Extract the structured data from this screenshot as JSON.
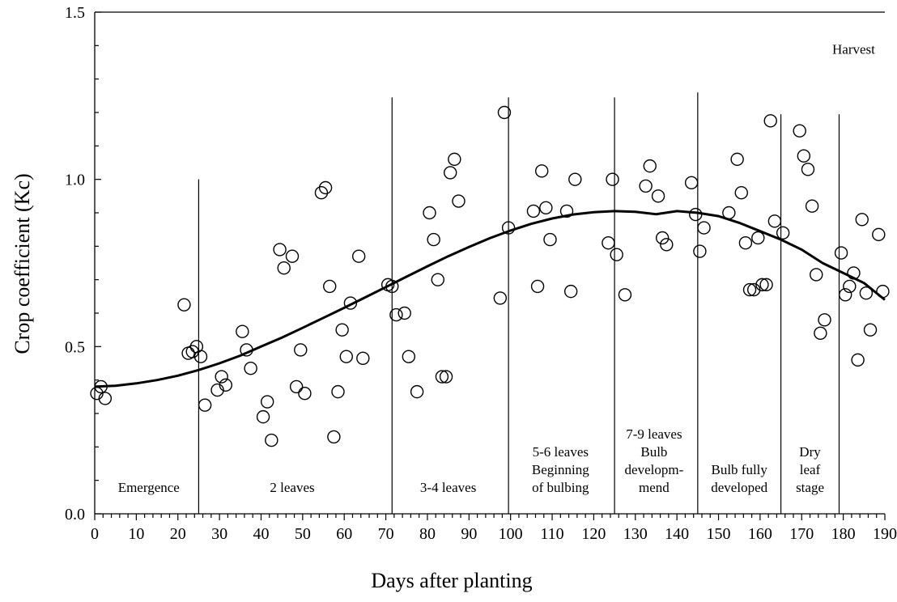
{
  "chart_data": {
    "type": "scatter",
    "title": "",
    "xlabel": "Days after planting",
    "ylabel": "Crop coefficient (Kc)",
    "xlim": [
      0,
      190
    ],
    "ylim": [
      0,
      1.5
    ],
    "x_ticks": [
      0,
      10,
      20,
      30,
      40,
      50,
      60,
      70,
      80,
      90,
      100,
      110,
      120,
      130,
      140,
      150,
      160,
      170,
      180,
      190
    ],
    "y_ticks": [
      0.0,
      0.5,
      1.0,
      1.5
    ],
    "y_tick_labels": [
      "0.0",
      "0.5",
      "1.0",
      "1.5"
    ],
    "grid": false,
    "legend": "none",
    "points": [
      {
        "x": 0.5,
        "y": 0.36
      },
      {
        "x": 1.5,
        "y": 0.38
      },
      {
        "x": 2.5,
        "y": 0.345
      },
      {
        "x": 21.5,
        "y": 0.625
      },
      {
        "x": 22.5,
        "y": 0.48
      },
      {
        "x": 23.5,
        "y": 0.485
      },
      {
        "x": 24.5,
        "y": 0.5
      },
      {
        "x": 25.5,
        "y": 0.47
      },
      {
        "x": 26.5,
        "y": 0.325
      },
      {
        "x": 29.5,
        "y": 0.37
      },
      {
        "x": 30.5,
        "y": 0.41
      },
      {
        "x": 31.5,
        "y": 0.385
      },
      {
        "x": 35.5,
        "y": 0.545
      },
      {
        "x": 36.5,
        "y": 0.49
      },
      {
        "x": 37.5,
        "y": 0.435
      },
      {
        "x": 40.5,
        "y": 0.29
      },
      {
        "x": 41.5,
        "y": 0.335
      },
      {
        "x": 42.5,
        "y": 0.22
      },
      {
        "x": 44.5,
        "y": 0.79
      },
      {
        "x": 45.5,
        "y": 0.735
      },
      {
        "x": 47.5,
        "y": 0.77
      },
      {
        "x": 48.5,
        "y": 0.38
      },
      {
        "x": 49.5,
        "y": 0.49
      },
      {
        "x": 50.5,
        "y": 0.36
      },
      {
        "x": 54.5,
        "y": 0.96
      },
      {
        "x": 55.5,
        "y": 0.975
      },
      {
        "x": 56.5,
        "y": 0.68
      },
      {
        "x": 57.5,
        "y": 0.23
      },
      {
        "x": 58.5,
        "y": 0.365
      },
      {
        "x": 59.5,
        "y": 0.55
      },
      {
        "x": 60.5,
        "y": 0.47
      },
      {
        "x": 61.5,
        "y": 0.63
      },
      {
        "x": 63.5,
        "y": 0.77
      },
      {
        "x": 64.5,
        "y": 0.465
      },
      {
        "x": 70.5,
        "y": 0.685
      },
      {
        "x": 71.5,
        "y": 0.68
      },
      {
        "x": 72.5,
        "y": 0.595
      },
      {
        "x": 74.5,
        "y": 0.6
      },
      {
        "x": 75.5,
        "y": 0.47
      },
      {
        "x": 77.5,
        "y": 0.365
      },
      {
        "x": 80.5,
        "y": 0.9
      },
      {
        "x": 81.5,
        "y": 0.82
      },
      {
        "x": 82.5,
        "y": 0.7
      },
      {
        "x": 83.5,
        "y": 0.41
      },
      {
        "x": 84.5,
        "y": 0.41
      },
      {
        "x": 85.5,
        "y": 1.02
      },
      {
        "x": 86.5,
        "y": 1.06
      },
      {
        "x": 87.5,
        "y": 0.935
      },
      {
        "x": 97.5,
        "y": 0.645
      },
      {
        "x": 98.5,
        "y": 1.2
      },
      {
        "x": 99.5,
        "y": 0.855
      },
      {
        "x": 105.5,
        "y": 0.905
      },
      {
        "x": 106.5,
        "y": 0.68
      },
      {
        "x": 107.5,
        "y": 1.025
      },
      {
        "x": 108.5,
        "y": 0.915
      },
      {
        "x": 109.5,
        "y": 0.82
      },
      {
        "x": 113.5,
        "y": 0.905
      },
      {
        "x": 114.5,
        "y": 0.665
      },
      {
        "x": 115.5,
        "y": 1.0
      },
      {
        "x": 123.5,
        "y": 0.81
      },
      {
        "x": 124.5,
        "y": 1.0
      },
      {
        "x": 125.5,
        "y": 0.775
      },
      {
        "x": 127.5,
        "y": 0.655
      },
      {
        "x": 132.5,
        "y": 0.98
      },
      {
        "x": 133.5,
        "y": 1.04
      },
      {
        "x": 135.5,
        "y": 0.95
      },
      {
        "x": 136.5,
        "y": 0.825
      },
      {
        "x": 137.5,
        "y": 0.805
      },
      {
        "x": 143.5,
        "y": 0.99
      },
      {
        "x": 144.5,
        "y": 0.895
      },
      {
        "x": 145.5,
        "y": 0.785
      },
      {
        "x": 146.5,
        "y": 0.855
      },
      {
        "x": 152.5,
        "y": 0.9
      },
      {
        "x": 154.5,
        "y": 1.06
      },
      {
        "x": 155.5,
        "y": 0.96
      },
      {
        "x": 156.5,
        "y": 0.81
      },
      {
        "x": 157.5,
        "y": 0.67
      },
      {
        "x": 158.5,
        "y": 0.67
      },
      {
        "x": 159.5,
        "y": 0.825
      },
      {
        "x": 160.5,
        "y": 0.685
      },
      {
        "x": 161.5,
        "y": 0.685
      },
      {
        "x": 162.5,
        "y": 1.175
      },
      {
        "x": 163.5,
        "y": 0.875
      },
      {
        "x": 165.5,
        "y": 0.84
      },
      {
        "x": 169.5,
        "y": 1.145
      },
      {
        "x": 170.5,
        "y": 1.07
      },
      {
        "x": 171.5,
        "y": 1.03
      },
      {
        "x": 172.5,
        "y": 0.92
      },
      {
        "x": 173.5,
        "y": 0.715
      },
      {
        "x": 174.5,
        "y": 0.54
      },
      {
        "x": 175.5,
        "y": 0.58
      },
      {
        "x": 179.5,
        "y": 0.78
      },
      {
        "x": 180.5,
        "y": 0.655
      },
      {
        "x": 181.5,
        "y": 0.68
      },
      {
        "x": 182.5,
        "y": 0.72
      },
      {
        "x": 183.5,
        "y": 0.46
      },
      {
        "x": 184.5,
        "y": 0.88
      },
      {
        "x": 185.5,
        "y": 0.66
      },
      {
        "x": 186.5,
        "y": 0.55
      },
      {
        "x": 188.5,
        "y": 0.835
      },
      {
        "x": 189.5,
        "y": 0.665
      }
    ],
    "fitted_curve": [
      {
        "x": 0,
        "y": 0.38
      },
      {
        "x": 5,
        "y": 0.383
      },
      {
        "x": 10,
        "y": 0.39
      },
      {
        "x": 15,
        "y": 0.4
      },
      {
        "x": 20,
        "y": 0.413
      },
      {
        "x": 25,
        "y": 0.43
      },
      {
        "x": 30,
        "y": 0.45
      },
      {
        "x": 35,
        "y": 0.473
      },
      {
        "x": 40,
        "y": 0.5
      },
      {
        "x": 45,
        "y": 0.527
      },
      {
        "x": 50,
        "y": 0.556
      },
      {
        "x": 55,
        "y": 0.586
      },
      {
        "x": 60,
        "y": 0.616
      },
      {
        "x": 65,
        "y": 0.647
      },
      {
        "x": 70,
        "y": 0.678
      },
      {
        "x": 75,
        "y": 0.709
      },
      {
        "x": 80,
        "y": 0.74
      },
      {
        "x": 85,
        "y": 0.77
      },
      {
        "x": 90,
        "y": 0.798
      },
      {
        "x": 95,
        "y": 0.824
      },
      {
        "x": 100,
        "y": 0.847
      },
      {
        "x": 105,
        "y": 0.867
      },
      {
        "x": 110,
        "y": 0.883
      },
      {
        "x": 115,
        "y": 0.895
      },
      {
        "x": 120,
        "y": 0.902
      },
      {
        "x": 125,
        "y": 0.905
      },
      {
        "x": 130,
        "y": 0.903
      },
      {
        "x": 135,
        "y": 0.896
      },
      {
        "x": 140,
        "y": 0.905
      },
      {
        "x": 145,
        "y": 0.9
      },
      {
        "x": 150,
        "y": 0.89
      },
      {
        "x": 155,
        "y": 0.87
      },
      {
        "x": 160,
        "y": 0.845
      },
      {
        "x": 165,
        "y": 0.82
      },
      {
        "x": 170,
        "y": 0.79
      },
      {
        "x": 175,
        "y": 0.75
      },
      {
        "x": 180,
        "y": 0.72
      },
      {
        "x": 185,
        "y": 0.69
      },
      {
        "x": 190,
        "y": 0.64
      }
    ],
    "stage_dividers": [
      {
        "x": 25,
        "ytop": 1.0
      },
      {
        "x": 71.5,
        "ytop": 1.245
      },
      {
        "x": 99.5,
        "ytop": 1.245
      },
      {
        "x": 125,
        "ytop": 1.245
      },
      {
        "x": 145,
        "ytop": 1.26
      },
      {
        "x": 165,
        "ytop": 1.195
      },
      {
        "x": 179,
        "ytop": 1.195
      }
    ],
    "stage_labels": [
      {
        "x_center": 13,
        "lines": [
          "Emergence"
        ]
      },
      {
        "x_center": 47.5,
        "lines": [
          "2 leaves"
        ]
      },
      {
        "x_center": 85,
        "lines": [
          "3-4 leaves"
        ]
      },
      {
        "x_center": 112,
        "lines": [
          "5-6 leaves",
          "Beginning",
          "of bulbing"
        ]
      },
      {
        "x_center": 134.5,
        "lines": [
          "7-9 leaves",
          "Bulb",
          "developm-",
          "mend"
        ]
      },
      {
        "x_center": 155,
        "lines": [
          "Bulb fully",
          "developed"
        ]
      },
      {
        "x_center": 172,
        "lines": [
          "Dry",
          "leaf",
          "stage"
        ]
      }
    ],
    "annotations": [
      {
        "text": "Harvest",
        "x": 182.5,
        "y": 1.375
      }
    ]
  }
}
